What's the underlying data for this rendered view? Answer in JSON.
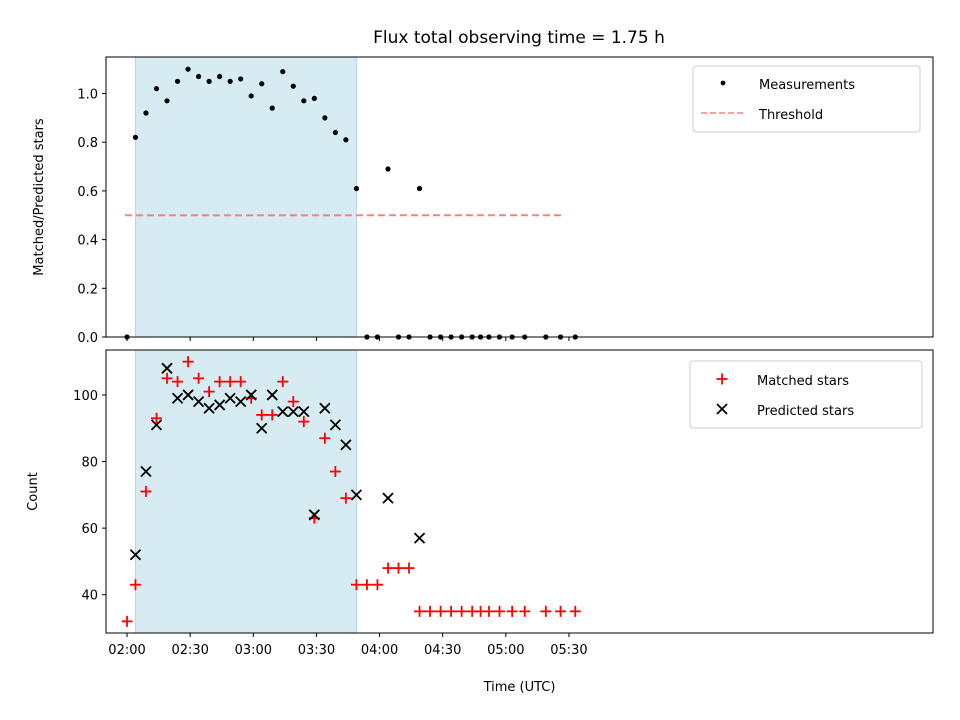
{
  "chart_data": {
    "type": "scatter",
    "title": "Flux total observing time = 1.75 h",
    "xlabel": "Time (UTC)",
    "x_unit": "minutes since 02:00 UTC",
    "xlim": [
      -10,
      383
    ],
    "xticks": [
      0,
      30,
      60,
      90,
      120,
      150,
      180,
      210
    ],
    "xtick_labels": [
      "02:00",
      "02:30",
      "03:00",
      "03:30",
      "04:00",
      "04:30",
      "05:00",
      "05:30"
    ],
    "observing_window": {
      "start": 4,
      "end": 109,
      "color": "#add8e6"
    },
    "top_panel": {
      "ylabel": "Matched/Predicted stars",
      "ylim": [
        0,
        1.15
      ],
      "yticks": [
        0.0,
        0.2,
        0.4,
        0.6,
        0.8,
        1.0
      ],
      "ytick_labels": [
        "0.0",
        "0.2",
        "0.4",
        "0.6",
        "0.8",
        "1.0"
      ],
      "legend": {
        "position": "top-right",
        "measurements_label": "Measurements",
        "threshold_label": "Threshold"
      },
      "threshold": {
        "value": 0.5,
        "x_range": [
          -1,
          207
        ],
        "color": "#ff7f7f"
      },
      "measurements": {
        "x": [
          0,
          4,
          9,
          14,
          19,
          24,
          29,
          34,
          39,
          44,
          49,
          54,
          59,
          64,
          69,
          74,
          79,
          84,
          89,
          94,
          99,
          104,
          109,
          114,
          119,
          124,
          129,
          134,
          139,
          144,
          149,
          154,
          159,
          164,
          168,
          172,
          177,
          183,
          189,
          199,
          206,
          213
        ],
        "y": [
          0.0,
          0.82,
          0.92,
          1.02,
          0.97,
          1.05,
          1.1,
          1.07,
          1.05,
          1.07,
          1.05,
          1.06,
          0.99,
          1.04,
          0.94,
          1.09,
          1.03,
          0.97,
          0.98,
          0.9,
          0.84,
          0.81,
          0.61,
          0.0,
          0.0,
          0.69,
          0.0,
          0.0,
          0.61,
          0.0,
          0.0,
          0.0,
          0.0,
          0.0,
          0.0,
          0.0,
          0.0,
          0.0,
          0.0,
          0.0,
          0.0,
          0.0
        ]
      }
    },
    "bottom_panel": {
      "ylabel": "Count",
      "ylim": [
        28.5,
        113.5
      ],
      "yticks": [
        40,
        60,
        80,
        100
      ],
      "ytick_labels": [
        "40",
        "60",
        "80",
        "100"
      ],
      "legend": {
        "position": "top-right"
      },
      "series": [
        {
          "name": "Matched stars",
          "marker": "plus",
          "color": "#ff0000",
          "x": [
            0,
            4,
            9,
            14,
            19,
            24,
            29,
            34,
            39,
            44,
            49,
            54,
            59,
            64,
            69,
            74,
            79,
            84,
            89,
            94,
            99,
            104,
            109,
            114,
            119,
            124,
            129,
            134,
            139,
            144,
            149,
            154,
            159,
            164,
            168,
            172,
            177,
            183,
            189,
            199,
            206,
            213
          ],
          "y": [
            32,
            43,
            71,
            93,
            105,
            104,
            110,
            105,
            101,
            104,
            104,
            104,
            99,
            94,
            94,
            104,
            98,
            92,
            63,
            87,
            77,
            69,
            43,
            43,
            43,
            48,
            48,
            48,
            35,
            35,
            35,
            35,
            35,
            35,
            35,
            35,
            35,
            35,
            35,
            35,
            35,
            35
          ]
        },
        {
          "name": "Predicted stars",
          "marker": "x",
          "color": "#000000",
          "x": [
            4,
            9,
            14,
            19,
            24,
            29,
            34,
            39,
            44,
            49,
            54,
            59,
            64,
            69,
            74,
            79,
            84,
            89,
            94,
            99,
            104,
            109,
            124,
            139
          ],
          "y": [
            52,
            77,
            91,
            108,
            99,
            100,
            98,
            96,
            97,
            99,
            98,
            100,
            90,
            100,
            95,
            95,
            95,
            64,
            96,
            91,
            85,
            70,
            69,
            57
          ]
        }
      ]
    }
  }
}
